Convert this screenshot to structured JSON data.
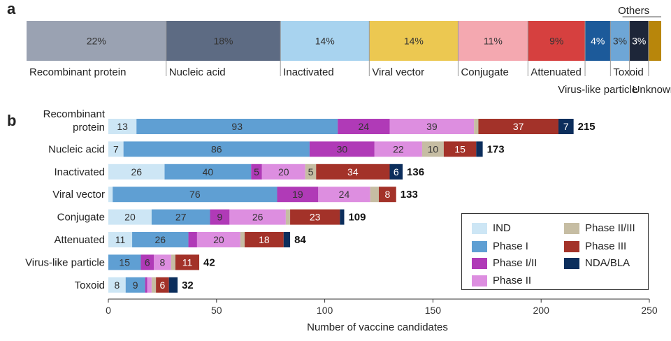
{
  "panels": {
    "a": "a",
    "b": "b"
  },
  "chart_data": [
    {
      "type": "bar",
      "subtype": "100%-stacked-single",
      "segments": [
        {
          "category": "Recombinant protein",
          "value": 22,
          "label": "22%",
          "color": "#9aa2b2"
        },
        {
          "category": "Nucleic acid",
          "value": 18,
          "label": "18%",
          "color": "#5d6b83"
        },
        {
          "category": "Inactivated",
          "value": 14,
          "label": "14%",
          "color": "#a8d3ef"
        },
        {
          "category": "Viral vector",
          "value": 14,
          "label": "14%",
          "color": "#ecc851"
        },
        {
          "category": "Conjugate",
          "value": 11,
          "label": "11%",
          "color": "#f4a8b0"
        },
        {
          "category": "Attenuated",
          "value": 9,
          "label": "9%",
          "color": "#d6403f"
        },
        {
          "category": "Virus-like particle",
          "value": 4,
          "label": "4%",
          "color": "#1c5a9a"
        },
        {
          "category": "Toxoid",
          "value": 3,
          "label": "3%",
          "color": "#6ea6d6"
        },
        {
          "category": "Unknown",
          "value": 3,
          "label": "3%",
          "color": "#1d2639"
        },
        {
          "category": "Others",
          "value": 2,
          "label": "",
          "color": "#b8860b"
        }
      ],
      "group_label": "Others"
    },
    {
      "type": "bar",
      "subtype": "horizontal-stacked",
      "xlabel": "Number of vaccine candidates",
      "xlim": [
        0,
        250
      ],
      "xticks": [
        0,
        50,
        100,
        150,
        200,
        250
      ],
      "grid": false,
      "legend_position": "bottom-right",
      "phases": [
        {
          "name": "IND",
          "color": "#cde6f5"
        },
        {
          "name": "Phase I",
          "color": "#5f9fd3"
        },
        {
          "name": "Phase I/II",
          "color": "#b03ab7"
        },
        {
          "name": "Phase II",
          "color": "#dd8ee0"
        },
        {
          "name": "Phase II/III",
          "color": "#c6bda3"
        },
        {
          "name": "Phase III",
          "color": "#a33229"
        },
        {
          "name": "NDA/BLA",
          "color": "#0c2e5c"
        }
      ],
      "rows": [
        {
          "category": [
            "Recombinant",
            "protein"
          ],
          "total": 215,
          "values": [
            13,
            93,
            24,
            39,
            2,
            37,
            7
          ],
          "labels": [
            "13",
            "93",
            "24",
            "39",
            "",
            "37",
            "7"
          ]
        },
        {
          "category": [
            "Nucleic acid"
          ],
          "total": 173,
          "values": [
            7,
            86,
            30,
            22,
            10,
            15,
            3
          ],
          "labels": [
            "7",
            "86",
            "30",
            "22",
            "10",
            "15",
            ""
          ]
        },
        {
          "category": [
            "Inactivated"
          ],
          "total": 136,
          "values": [
            26,
            40,
            5,
            20,
            5,
            34,
            6
          ],
          "labels": [
            "26",
            "40",
            "5",
            "20",
            "5",
            "34",
            "6"
          ]
        },
        {
          "category": [
            "Viral vector"
          ],
          "total": 133,
          "values": [
            2,
            76,
            19,
            24,
            4,
            8,
            0
          ],
          "labels": [
            "",
            "76",
            "19",
            "24",
            "",
            "8",
            ""
          ]
        },
        {
          "category": [
            "Conjugate"
          ],
          "total": 109,
          "values": [
            20,
            27,
            9,
            26,
            2,
            23,
            2
          ],
          "labels": [
            "20",
            "27",
            "9",
            "26",
            "",
            "23",
            ""
          ]
        },
        {
          "category": [
            "Attenuated"
          ],
          "total": 84,
          "values": [
            11,
            26,
            4,
            20,
            2,
            18,
            3
          ],
          "labels": [
            "11",
            "26",
            "",
            "20",
            "",
            "18",
            ""
          ]
        },
        {
          "category": [
            "Virus-like particle"
          ],
          "total": 42,
          "values": [
            0,
            15,
            6,
            8,
            2,
            11,
            0
          ],
          "labels": [
            "",
            "15",
            "6",
            "8",
            "",
            "11",
            ""
          ]
        },
        {
          "category": [
            "Toxoid"
          ],
          "total": 32,
          "values": [
            8,
            9,
            1,
            2,
            2,
            6,
            4
          ],
          "labels": [
            "8",
            "9",
            "",
            "",
            "",
            "6",
            ""
          ]
        }
      ]
    }
  ]
}
